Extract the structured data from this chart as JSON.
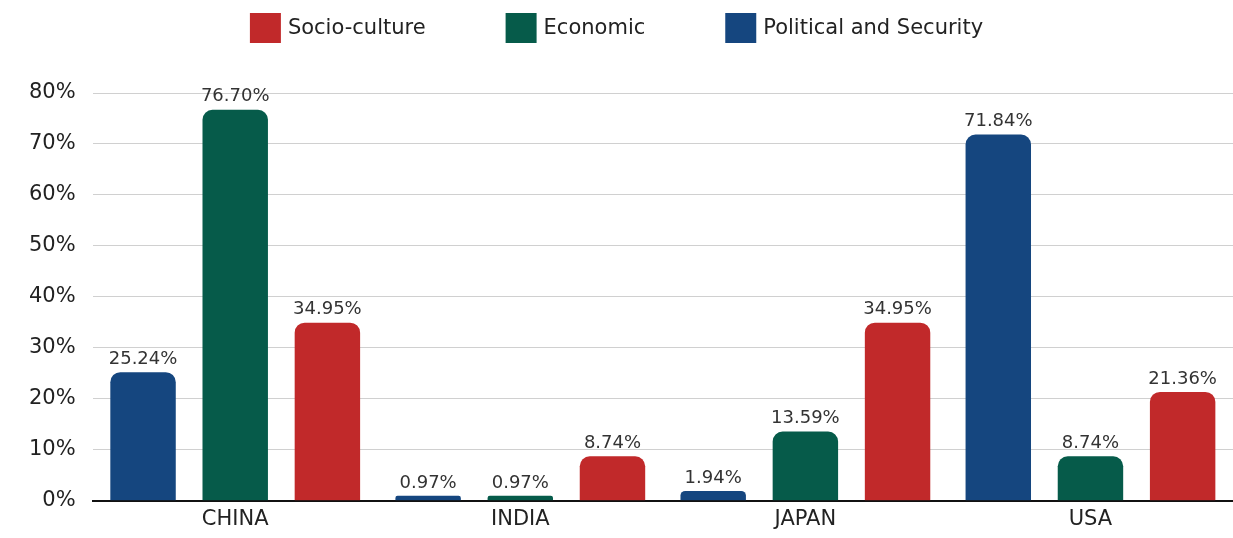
{
  "chart_data": {
    "type": "bar",
    "categories": [
      "CHINA",
      "INDIA",
      "JAPAN",
      "USA"
    ],
    "series": [
      {
        "name": "Political and Security",
        "color": "#15467f",
        "values": [
          25.24,
          0.97,
          1.94,
          71.84
        ],
        "value_labels": [
          "25.24%",
          "0.97%",
          "1.94%",
          "71.84%"
        ]
      },
      {
        "name": "Economic",
        "color": "#065b4a",
        "values": [
          76.7,
          0.97,
          13.59,
          8.74
        ],
        "value_labels": [
          "76.70%",
          "0.97%",
          "13.59%",
          "8.74%"
        ]
      },
      {
        "name": "Socio-culture",
        "color": "#c1292a",
        "values": [
          34.95,
          8.74,
          34.95,
          21.36
        ],
        "value_labels": [
          "34.95%",
          "8.74%",
          "34.95%",
          "21.36%"
        ]
      }
    ],
    "ylim": [
      0,
      80
    ],
    "yticks": [
      {
        "value": 0,
        "label": "0%"
      },
      {
        "value": 10,
        "label": "10%"
      },
      {
        "value": 20,
        "label": "20%"
      },
      {
        "value": 30,
        "label": "30%"
      },
      {
        "value": 40,
        "label": "40%"
      },
      {
        "value": 50,
        "label": "50%"
      },
      {
        "value": 60,
        "label": "60%"
      },
      {
        "value": 70,
        "label": "70%"
      },
      {
        "value": 80,
        "label": "80%"
      }
    ],
    "grid": "y",
    "legend": "top"
  }
}
